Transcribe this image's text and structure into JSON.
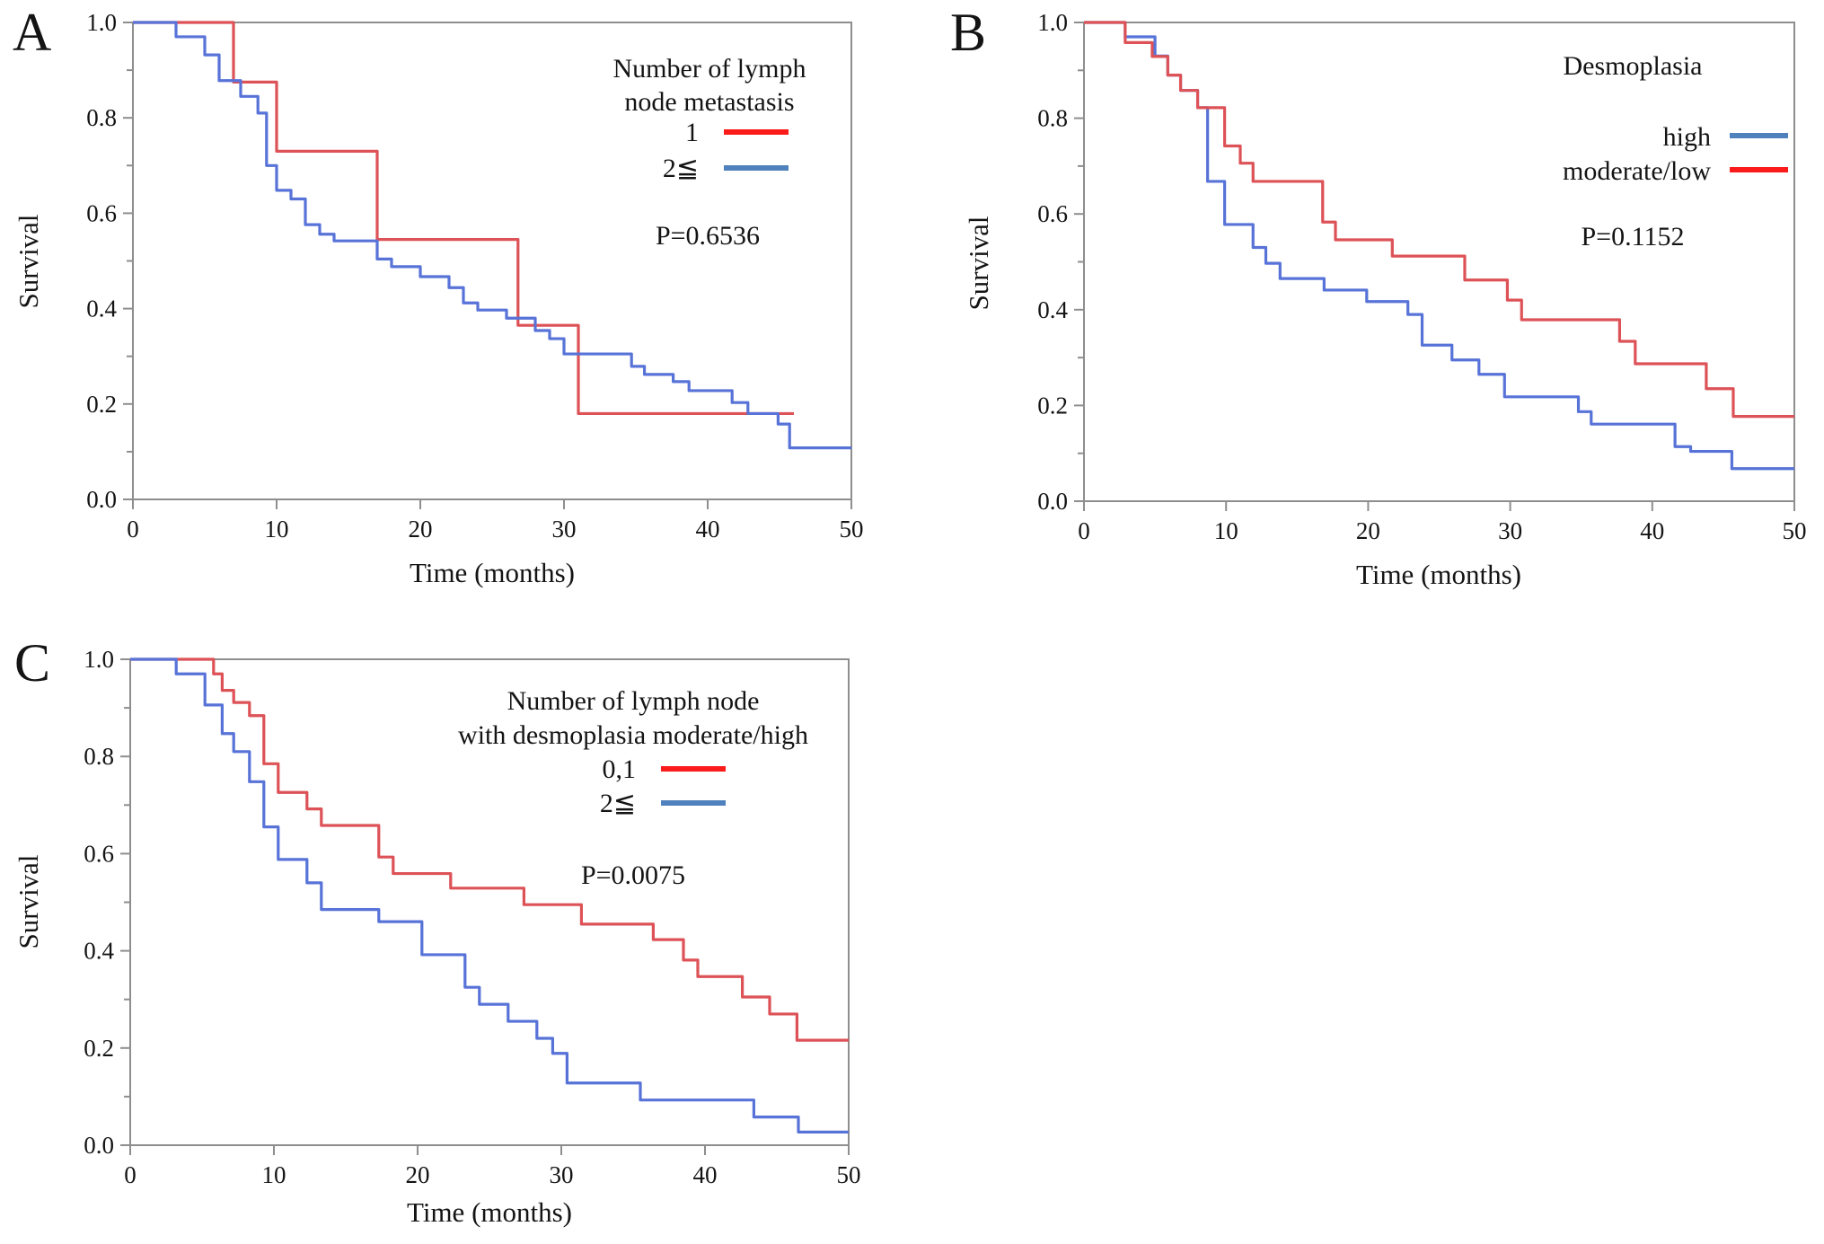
{
  "figure": {
    "background": "#ffffff"
  },
  "colors": {
    "curve_red": "#dd5257",
    "curve_blue": "#5873d8",
    "swatch_red": "#fb1b1b",
    "swatch_blue": "#4f81bd",
    "axis": "#8e8e8e",
    "text": "#141414"
  },
  "chart_data": [
    {
      "type": "line",
      "subtype": "kaplan-meier-step",
      "panel_label": "A",
      "xlabel": "Time (months)",
      "ylabel": "Survival",
      "xlim": [
        0,
        50
      ],
      "ylim": [
        0,
        1
      ],
      "xticks": [
        "0",
        "10",
        "20",
        "30",
        "40",
        "50"
      ],
      "yticks": [
        "0.0",
        "0.2",
        "0.4",
        "0.6",
        "0.8",
        "1.0"
      ],
      "yminor": [
        0.1,
        0.3,
        0.5,
        0.7,
        0.9
      ],
      "grid": false,
      "legend": {
        "position": "inside top-right",
        "title_lines": [
          "Number of lymph",
          "node metastasis"
        ],
        "items": [
          {
            "label": "1",
            "color": "red"
          },
          {
            "label": "2≦",
            "color": "blue"
          }
        ]
      },
      "p_value": "P=0.6536",
      "series": [
        {
          "name": "1",
          "color": "red",
          "end": 46,
          "steps": [
            [
              0,
              1.0
            ],
            [
              7,
              0.875
            ],
            [
              10,
              0.73
            ],
            [
              17,
              0.545
            ],
            [
              26.8,
              0.365
            ],
            [
              31,
              0.18
            ]
          ]
        },
        {
          "name": "2≦",
          "color": "blue",
          "end": 50,
          "steps": [
            [
              0,
              1.0
            ],
            [
              3,
              0.97
            ],
            [
              5,
              0.932
            ],
            [
              6,
              0.878
            ],
            [
              7.5,
              0.845
            ],
            [
              8.7,
              0.81
            ],
            [
              9.3,
              0.7
            ],
            [
              10,
              0.648
            ],
            [
              11,
              0.63
            ],
            [
              12,
              0.576
            ],
            [
              13,
              0.556
            ],
            [
              14,
              0.542
            ],
            [
              17,
              0.504
            ],
            [
              18,
              0.488
            ],
            [
              20,
              0.467
            ],
            [
              22,
              0.444
            ],
            [
              23,
              0.412
            ],
            [
              24,
              0.397
            ],
            [
              26,
              0.38
            ],
            [
              28,
              0.354
            ],
            [
              29,
              0.337
            ],
            [
              30,
              0.305
            ],
            [
              34.7,
              0.279
            ],
            [
              35.6,
              0.262
            ],
            [
              37.6,
              0.247
            ],
            [
              38.7,
              0.228
            ],
            [
              41.7,
              0.203
            ],
            [
              42.8,
              0.18
            ],
            [
              44.9,
              0.158
            ],
            [
              45.7,
              0.108
            ]
          ]
        }
      ]
    },
    {
      "type": "line",
      "subtype": "kaplan-meier-step",
      "panel_label": "B",
      "xlabel": "Time (months)",
      "ylabel": "Survival",
      "xlim": [
        0,
        50
      ],
      "ylim": [
        0,
        1
      ],
      "xticks": [
        "0",
        "10",
        "20",
        "30",
        "40",
        "50"
      ],
      "yticks": [
        "0.0",
        "0.2",
        "0.4",
        "0.6",
        "0.8",
        "1.0"
      ],
      "yminor": [
        0.1,
        0.3,
        0.5,
        0.7,
        0.9
      ],
      "grid": false,
      "legend": {
        "position": "inside top-right",
        "title_lines": [
          "Desmoplasia"
        ],
        "items": [
          {
            "label": "high",
            "color": "blue"
          },
          {
            "label": "moderate/low",
            "color": "red"
          }
        ]
      },
      "p_value": "P=0.1152",
      "series": [
        {
          "name": "high",
          "color": "blue",
          "end": 50,
          "steps": [
            [
              0,
              1.0
            ],
            [
              2.9,
              0.97
            ],
            [
              5.0,
              0.93
            ],
            [
              5.9,
              0.89
            ],
            [
              6.8,
              0.858
            ],
            [
              8.0,
              0.822
            ],
            [
              8.7,
              0.668
            ],
            [
              9.9,
              0.578
            ],
            [
              11.9,
              0.53
            ],
            [
              12.8,
              0.497
            ],
            [
              13.8,
              0.465
            ],
            [
              16.9,
              0.441
            ],
            [
              19.9,
              0.417
            ],
            [
              22.8,
              0.39
            ],
            [
              23.8,
              0.326
            ],
            [
              25.9,
              0.295
            ],
            [
              27.8,
              0.265
            ],
            [
              29.6,
              0.218
            ],
            [
              34.8,
              0.187
            ],
            [
              35.7,
              0.161
            ],
            [
              41.6,
              0.114
            ],
            [
              42.7,
              0.104
            ],
            [
              45.6,
              0.068
            ]
          ]
        },
        {
          "name": "moderate/low",
          "color": "red",
          "end": 50,
          "steps": [
            [
              0,
              1.0
            ],
            [
              2.9,
              0.958
            ],
            [
              4.8,
              0.929
            ],
            [
              5.9,
              0.89
            ],
            [
              6.8,
              0.858
            ],
            [
              8.0,
              0.822
            ],
            [
              9.9,
              0.742
            ],
            [
              11.0,
              0.706
            ],
            [
              11.9,
              0.668
            ],
            [
              16.8,
              0.583
            ],
            [
              17.7,
              0.546
            ],
            [
              21.7,
              0.512
            ],
            [
              26.8,
              0.462
            ],
            [
              29.8,
              0.42
            ],
            [
              30.8,
              0.379
            ],
            [
              37.7,
              0.334
            ],
            [
              38.8,
              0.287
            ],
            [
              43.8,
              0.235
            ],
            [
              45.7,
              0.177
            ]
          ]
        }
      ]
    },
    {
      "type": "line",
      "subtype": "kaplan-meier-step",
      "panel_label": "C",
      "xlabel": "Time (months)",
      "ylabel": "Survival",
      "xlim": [
        0,
        50
      ],
      "ylim": [
        0,
        1
      ],
      "xticks": [
        "0",
        "10",
        "20",
        "30",
        "40",
        "50"
      ],
      "yticks": [
        "0.0",
        "0.2",
        "0.4",
        "0.6",
        "0.8",
        "1.0"
      ],
      "yminor": [
        0.1,
        0.3,
        0.5,
        0.7,
        0.9
      ],
      "grid": false,
      "legend": {
        "position": "inside top-right",
        "title_lines": [
          "Number of lymph node",
          "with desmoplasia moderate/high"
        ],
        "items": [
          {
            "label": "0,1",
            "color": "red"
          },
          {
            "label": "2≦",
            "color": "blue"
          }
        ]
      },
      "p_value": "P=0.0075",
      "series": [
        {
          "name": "0,1",
          "color": "red",
          "end": 50,
          "steps": [
            [
              0,
              1.0
            ],
            [
              5.8,
              0.97
            ],
            [
              6.4,
              0.936
            ],
            [
              7.2,
              0.911
            ],
            [
              8.3,
              0.884
            ],
            [
              9.3,
              0.785
            ],
            [
              10.3,
              0.726
            ],
            [
              12.3,
              0.692
            ],
            [
              13.3,
              0.658
            ],
            [
              17.3,
              0.593
            ],
            [
              18.3,
              0.559
            ],
            [
              22.3,
              0.529
            ],
            [
              27.4,
              0.495
            ],
            [
              31.4,
              0.455
            ],
            [
              36.4,
              0.423
            ],
            [
              38.5,
              0.381
            ],
            [
              39.5,
              0.347
            ],
            [
              42.6,
              0.305
            ],
            [
              44.5,
              0.27
            ],
            [
              46.4,
              0.216
            ]
          ]
        },
        {
          "name": "2≦",
          "color": "blue",
          "end": 50,
          "steps": [
            [
              0,
              1.0
            ],
            [
              3.2,
              0.97
            ],
            [
              5.2,
              0.906
            ],
            [
              6.4,
              0.847
            ],
            [
              7.2,
              0.81
            ],
            [
              8.3,
              0.748
            ],
            [
              9.3,
              0.655
            ],
            [
              10.3,
              0.588
            ],
            [
              12.3,
              0.54
            ],
            [
              13.3,
              0.485
            ],
            [
              17.3,
              0.46
            ],
            [
              20.3,
              0.392
            ],
            [
              23.3,
              0.325
            ],
            [
              24.3,
              0.29
            ],
            [
              26.3,
              0.255
            ],
            [
              28.3,
              0.22
            ],
            [
              29.4,
              0.189
            ],
            [
              30.4,
              0.128
            ],
            [
              35.5,
              0.093
            ],
            [
              43.4,
              0.058
            ],
            [
              46.5,
              0.027
            ]
          ]
        }
      ]
    }
  ]
}
